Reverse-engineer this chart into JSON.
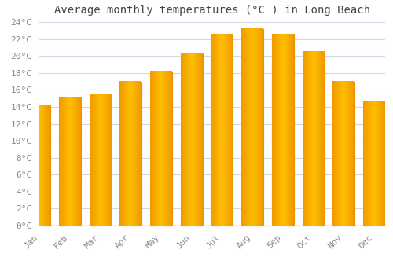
{
  "title": "Average monthly temperatures (°C ) in Long Beach",
  "months": [
    "Jan",
    "Feb",
    "Mar",
    "Apr",
    "May",
    "Jun",
    "Jul",
    "Aug",
    "Sep",
    "Oct",
    "Nov",
    "Dec"
  ],
  "temperatures": [
    14.2,
    15.1,
    15.4,
    17.0,
    18.2,
    20.3,
    22.6,
    23.2,
    22.6,
    20.5,
    17.0,
    14.6
  ],
  "bar_color_center": "#FFB700",
  "bar_color_edge": "#F09000",
  "ylim": [
    0,
    24
  ],
  "ytick_step": 2,
  "background_color": "#ffffff",
  "grid_color": "#d0d8e8",
  "title_fontsize": 10,
  "tick_fontsize": 8,
  "tick_label_color": "#888888",
  "title_color": "#444444",
  "bar_width": 0.72
}
